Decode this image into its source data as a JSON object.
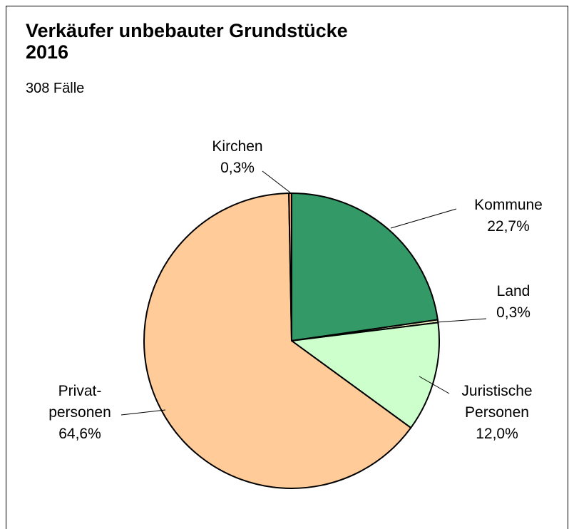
{
  "chart_data": {
    "type": "pie",
    "title": "Verkäufer unbebauter Grundstücke\n2016",
    "subtitle": "308 Fälle",
    "categories": [
      "Kommune",
      "Land",
      "Juristische\nPersonen",
      "Privat-\npersonen",
      "Kirchen"
    ],
    "values": [
      22.7,
      0.3,
      12.0,
      64.6,
      0.3
    ],
    "value_labels": [
      "22,7%",
      "0,3%",
      "12,0%",
      "64,6%",
      "0,3%"
    ],
    "colors": [
      "#339966",
      "#ffffcc",
      "#ccffcc",
      "#ffcc99",
      "#ff9966"
    ]
  }
}
